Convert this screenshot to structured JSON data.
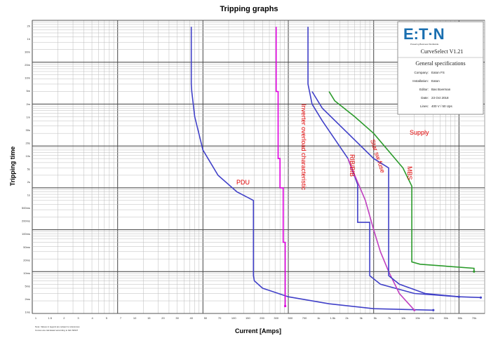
{
  "chart_data": {
    "type": "line",
    "title": "Tripping graphs",
    "xlabel": "Current [Amps]",
    "ylabel": "Tripping time",
    "x_scale": "log",
    "y_scale": "log",
    "xlim": [
      1,
      200000
    ],
    "ylim": [
      0.001,
      10000
    ],
    "grid": true,
    "series": [
      {
        "name": "PDU",
        "color": "#4040c8",
        "x": [
          73,
          73,
          74,
          80,
          100,
          150,
          250,
          390,
          390,
          400,
          500,
          1000,
          3000,
          10000,
          50000
        ],
        "y": [
          7000,
          300,
          200,
          50,
          8,
          2,
          0.8,
          0.5,
          0.008,
          0.006,
          0.004,
          0.0025,
          0.0017,
          0.0013,
          0.0012
        ]
      },
      {
        "name": "Inverter overload characteristic",
        "color": "#e000e0",
        "x": [
          720,
          720,
          760,
          760,
          800,
          800,
          870,
          870,
          920,
          920
        ],
        "y": [
          7000,
          200,
          200,
          5,
          5,
          1,
          1,
          0.05,
          0.05,
          0.0015
        ]
      },
      {
        "name": "RIB/BIB",
        "color": "#4040c8",
        "x": [
          1700,
          1700,
          1900,
          2500,
          5000,
          6500,
          6500,
          9000,
          9000,
          12000,
          30000,
          100000
        ],
        "y": [
          7000,
          300,
          100,
          40,
          5,
          1.2,
          0.15,
          0.15,
          0.008,
          0.005,
          0.003,
          0.0025
        ]
      },
      {
        "name": "Star sw fuse",
        "color": "#c040c0",
        "x": [
          5000,
          6000,
          8000,
          10000,
          12000,
          15000,
          20000,
          30000
        ],
        "y": [
          5,
          2,
          0.5,
          0.1,
          0.03,
          0.01,
          0.003,
          0.0012
        ]
      },
      {
        "name": "MBS",
        "color": "#4040c8",
        "x": [
          1900,
          2500,
          5000,
          10000,
          15000,
          15000,
          20000,
          40000,
          100000,
          180000
        ],
        "y": [
          200,
          80,
          20,
          5,
          3,
          0.008,
          0.005,
          0.003,
          0.0025,
          0.0024
        ]
      },
      {
        "name": "Supply",
        "color": "#2a9a2a",
        "x": [
          3000,
          3500,
          6000,
          10000,
          22000,
          28000,
          28000,
          35000,
          150000,
          150000
        ],
        "y": [
          200,
          120,
          50,
          20,
          3,
          1.1,
          0.017,
          0.015,
          0.012,
          0.01
        ]
      }
    ],
    "annotations": [
      "PDU",
      "Inverter overload characteristic",
      "RIB/BIB",
      "Star sw fuse",
      "MBS",
      "Supply"
    ],
    "specs_panel": {
      "logo": "E:T·N",
      "logo_tagline": "Powering Business Worldwide",
      "product": "CurveSelect   V1.21",
      "heading": "General specifications",
      "rows": [
        {
          "key": "Company:",
          "value": "Eaton FS"
        },
        {
          "key": "Installation:",
          "value": "Eaton"
        },
        {
          "key": "Editor:",
          "value": "Bas Boerman"
        },
        {
          "key": "Date:",
          "value": "23 Oct 2018"
        },
        {
          "key": "Lines:",
          "value": "400 V / 50 Ups"
        }
      ]
    },
    "y_ticks": [
      "2h",
      "1h",
      "30m",
      "20m",
      "10m",
      "5m",
      "2m",
      "1m",
      "30s",
      "20s",
      "10s",
      "5s",
      "2s",
      "1s",
      "500ms",
      "200ms",
      "100ms",
      "50ms",
      "20ms",
      "10ms",
      "5ms",
      "2ms",
      "1ms"
    ],
    "x_ticks": [
      "1",
      "1.5",
      "2",
      "3",
      "4",
      "5",
      "7",
      "10",
      "15",
      "20",
      "30",
      "40",
      "50",
      "70",
      "100",
      "150",
      "200",
      "300",
      "500",
      "700",
      "1k",
      "1.5k",
      "2k",
      "3k",
      "5k",
      "7k",
      "10k",
      "15k",
      "20k",
      "30k",
      "50k",
      "70k"
    ],
    "footnote": "Note: Values in legend are subject to tolerances\nCurves are calculated according to IEC 60947"
  }
}
